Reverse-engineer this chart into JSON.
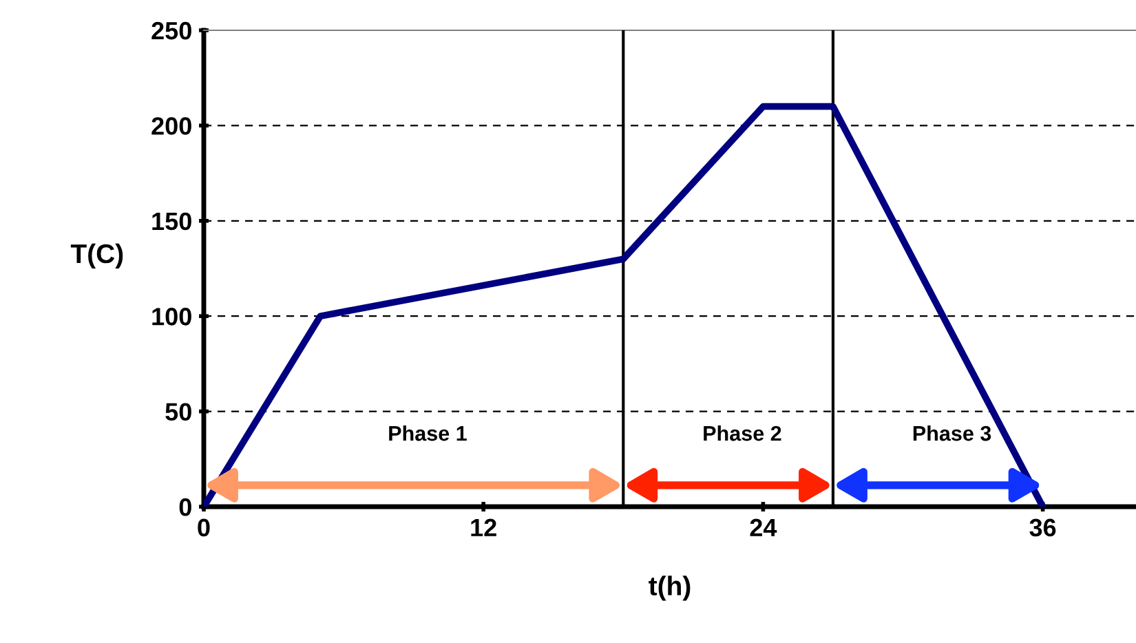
{
  "chart_data": {
    "type": "line",
    "xlabel": "t(h)",
    "ylabel": "T(C)",
    "x": [
      0,
      5,
      18,
      24,
      27,
      36
    ],
    "series": [
      {
        "color": "#000080",
        "values": [
          0,
          100,
          130,
          210,
          210,
          0
        ]
      }
    ],
    "xlim": [
      0,
      40
    ],
    "ylim": [
      0,
      250
    ],
    "xticks": [
      0,
      12,
      24,
      36
    ],
    "yticks": [
      0,
      50,
      100,
      150,
      200,
      250
    ],
    "grid": "y",
    "line_style": "solid",
    "marker": "none",
    "ref_lines": [
      {
        "axis": "x",
        "value": 18,
        "color": "#000000"
      },
      {
        "axis": "x",
        "value": 27,
        "color": "#000000"
      }
    ],
    "annotations": [
      "Phase 1",
      "Phase 2",
      "Phase 3"
    ]
  }
}
